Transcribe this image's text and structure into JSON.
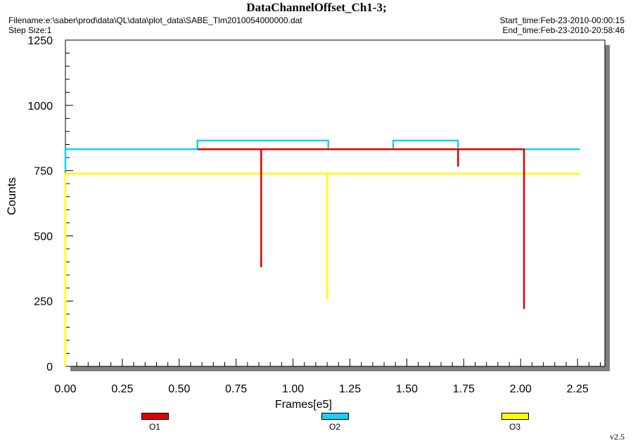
{
  "header": {
    "title": "DataChannelOffset_Ch1-3;",
    "filename": "Filename:e:\\saber\\prod\\data\\QL\\data\\plot_data\\SABE_Tlm2010054000000.dat",
    "step_size": "Step Size:1",
    "start_time": "Start_time:Feb-23-2010-00:00:15",
    "end_time": "End_time:Feb-23-2010-20:58:46"
  },
  "version": "v2.5",
  "chart_data": {
    "type": "line",
    "title": "DataChannelOffset_Ch1-3;",
    "xlabel": "Frames[e5]",
    "ylabel": "Counts",
    "xlim": [
      0,
      2.37
    ],
    "ylim": [
      0,
      1250
    ],
    "xticks": [
      "0.00",
      "0.25",
      "0.50",
      "0.75",
      "1.00",
      "1.25",
      "1.50",
      "1.75",
      "2.00",
      "2.25"
    ],
    "yticks": [
      "0",
      "250",
      "500",
      "750",
      "1000",
      "1250"
    ],
    "grid": false,
    "legend_position": "bottom",
    "series": [
      {
        "name": "O1",
        "color": "#e00000",
        "x": [
          0.58,
          0.86,
          0.86,
          0.86,
          1.155,
          1.45,
          1.725,
          1.725,
          1.725,
          2.015,
          2.015
        ],
        "y": [
          832,
          832,
          380,
          832,
          832,
          832,
          832,
          765,
          832,
          832,
          220
        ]
      },
      {
        "name": "O2",
        "color": "#18d0f0",
        "x": [
          0.0,
          0.0,
          0.58,
          0.58,
          1.155,
          1.155,
          1.44,
          1.44,
          1.725,
          1.725,
          2.26
        ],
        "y": [
          750,
          832,
          832,
          865,
          865,
          832,
          832,
          865,
          865,
          832,
          832
        ]
      },
      {
        "name": "O3",
        "color": "#ffff00",
        "x": [
          0.0,
          0.0,
          1.15,
          1.15,
          1.15,
          2.26
        ],
        "y": [
          0,
          738,
          738,
          255,
          738,
          738
        ]
      }
    ]
  }
}
